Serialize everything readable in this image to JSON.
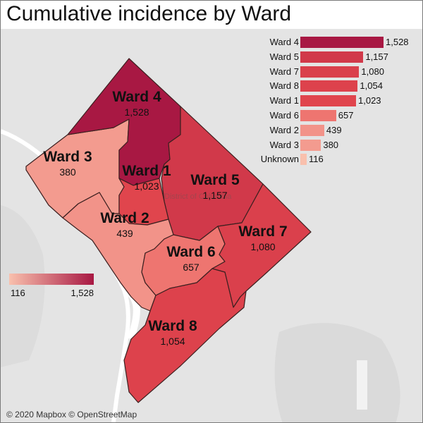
{
  "title": "Cumulative incidence by Ward",
  "color_scale": {
    "low": "#f9c0ad",
    "high": "#a81843",
    "min": 116,
    "max": 1528,
    "min_label": "116",
    "max_label": "1,528"
  },
  "wards": [
    {
      "id": "ward4",
      "name": "Ward 4",
      "value": 1528,
      "value_label": "1,528"
    },
    {
      "id": "ward5",
      "name": "Ward 5",
      "value": 1157,
      "value_label": "1,157"
    },
    {
      "id": "ward7",
      "name": "Ward 7",
      "value": 1080,
      "value_label": "1,080"
    },
    {
      "id": "ward8",
      "name": "Ward 8",
      "value": 1054,
      "value_label": "1,054"
    },
    {
      "id": "ward1",
      "name": "Ward 1",
      "value": 1023,
      "value_label": "1,023"
    },
    {
      "id": "ward6",
      "name": "Ward 6",
      "value": 657,
      "value_label": "657"
    },
    {
      "id": "ward2",
      "name": "Ward 2",
      "value": 439,
      "value_label": "439"
    },
    {
      "id": "ward3",
      "name": "Ward 3",
      "value": 380,
      "value_label": "380"
    }
  ],
  "chart_data": {
    "type": "bar",
    "orientation": "horizontal",
    "categories": [
      "Ward 4",
      "Ward 5",
      "Ward 7",
      "Ward 8",
      "Ward 1",
      "Ward 6",
      "Ward 2",
      "Ward 3",
      "Unknown"
    ],
    "values": [
      1528,
      1157,
      1080,
      1054,
      1023,
      657,
      439,
      380,
      116
    ],
    "value_labels": [
      "1,528",
      "1,157",
      "1,080",
      "1,054",
      "1,023",
      "657",
      "439",
      "380",
      "116"
    ]
  },
  "map_text": {
    "district_label": "District of Columbia"
  },
  "attribution": "© 2020 Mapbox © OpenStreetMap"
}
